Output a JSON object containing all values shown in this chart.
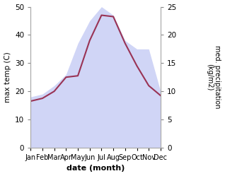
{
  "months": [
    "Jan",
    "Feb",
    "Mar",
    "Apr",
    "May",
    "Jun",
    "Jul",
    "Aug",
    "Sep",
    "Oct",
    "Nov",
    "Dec"
  ],
  "temp_max": [
    16.5,
    17.5,
    20.0,
    25.0,
    25.5,
    38.0,
    47.0,
    46.5,
    37.0,
    29.0,
    22.0,
    18.5
  ],
  "precip": [
    9.0,
    9.5,
    11.0,
    13.0,
    18.5,
    22.5,
    25.0,
    23.5,
    19.0,
    17.5,
    17.5,
    10.0
  ],
  "temp_color": "#993355",
  "precip_fill_color": "#c8cef5",
  "precip_fill_alpha": 0.85,
  "left_ylabel": "max temp (C)",
  "right_ylabel": "med. precipitation\n(kg/m2)",
  "xlabel": "date (month)",
  "ylim_left": [
    0,
    50
  ],
  "ylim_right": [
    0,
    25
  ],
  "left_yticks": [
    0,
    10,
    20,
    30,
    40,
    50
  ],
  "right_yticks": [
    0,
    5,
    10,
    15,
    20,
    25
  ],
  "scale_factor": 2.0,
  "bg_color": "#ffffff",
  "axis_color": "#888888",
  "spine_color": "#aaaaaa"
}
